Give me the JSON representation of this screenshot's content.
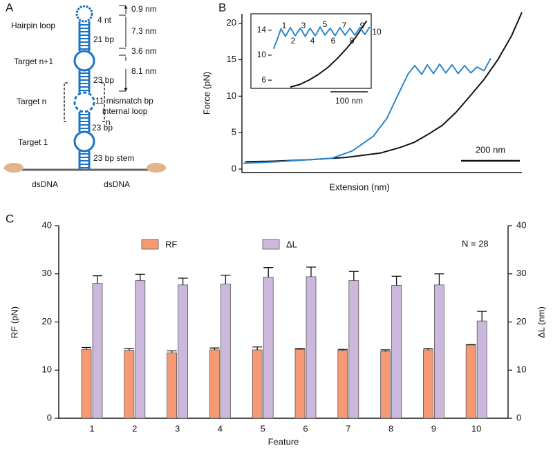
{
  "panels": {
    "a": "A",
    "b": "B",
    "c": "C"
  },
  "diagram": {
    "hairpin_loop": "Hairpin loop",
    "target_n1": "Target n+1",
    "target_n": "Target n",
    "target_1": "Target 1",
    "n": "n",
    "nt4": "4 nt",
    "bp21": "21 bp",
    "bp23_a": "23 bp",
    "mismatch": "11 mismatch bp",
    "internal_loop": "internal loop",
    "bp23_b": "23 bp",
    "stem": "23 bp stem",
    "d1": "0.9 nm",
    "d2": "7.3 nm",
    "d3": "3.6 nm",
    "d4": "8.1 nm",
    "dsdna_left": "dsDNA",
    "dsdna_right": "dsDNA"
  },
  "chart_data": [
    {
      "type": "line",
      "x_label": "Extension (nm)",
      "y_label": "Force (pN)",
      "xlim": [
        0,
        953
      ],
      "ylim": [
        0,
        21.3
      ],
      "yticks": [
        0,
        5,
        10,
        15,
        20
      ],
      "scale_bar": {
        "value": 200,
        "label": "200 nm"
      },
      "series": [
        {
          "color": "#111111",
          "x": [
            12,
            118,
            235,
            353,
            471,
            541,
            588,
            635,
            682,
            729,
            776,
            824,
            871,
            918,
            953
          ],
          "values": [
            1.0,
            1.1,
            1.3,
            1.6,
            2.2,
            3.0,
            3.7,
            4.8,
            6.0,
            7.8,
            10.0,
            12.3,
            15.0,
            18.3,
            21.5
          ]
        },
        {
          "color": "#2b86cc",
          "x": [
            5,
            118,
            306,
            376,
            447,
            494,
            529,
            565,
            588,
            612,
            631,
            652,
            673,
            694,
            715,
            736,
            758,
            779,
            800,
            824,
            847
          ],
          "values": [
            0.8,
            1.0,
            1.5,
            2.5,
            4.5,
            7.0,
            10.0,
            13.0,
            14.2,
            13.0,
            14.3,
            13.1,
            14.4,
            13.2,
            14.3,
            13.1,
            14.2,
            13.2,
            14.0,
            13.5,
            15.2
          ]
        }
      ]
    },
    {
      "type": "line",
      "xlim": [
        0,
        267
      ],
      "ylim": [
        4.8,
        16.5
      ],
      "yticks": [
        6,
        10,
        14
      ],
      "scale_bar": {
        "value": 100,
        "label": "100 nm"
      },
      "annotations": [
        "1",
        "2",
        "3",
        "4",
        "5",
        "6",
        "7",
        "8",
        "9",
        "10"
      ],
      "series": [
        {
          "color": "#111111",
          "x": [
            50,
            75,
            100,
            125,
            150,
            175,
            200,
            225,
            255
          ],
          "values": [
            4.9,
            5.3,
            6.0,
            6.9,
            8.0,
            9.4,
            11.0,
            12.8,
            15.5
          ]
        },
        {
          "color": "#2b86cc",
          "x": [
            5,
            15,
            25,
            37,
            50,
            63,
            77,
            90,
            103,
            117,
            130,
            143,
            157,
            170,
            183,
            197,
            210,
            223,
            237,
            250,
            263
          ],
          "values": [
            11,
            12.5,
            14.2,
            13,
            14.4,
            13.1,
            14.3,
            13,
            14.3,
            13.1,
            14.5,
            13.2,
            14.3,
            13.1,
            14.4,
            13.2,
            14.3,
            13.2,
            14.4,
            13.3,
            14.5
          ]
        }
      ]
    },
    {
      "type": "bar",
      "x_label": "Feature",
      "y_label": "RF (pN)",
      "y2_label": "ΔL (nm)",
      "annotation": "N = 28",
      "categories": [
        "1",
        "2",
        "3",
        "4",
        "5",
        "6",
        "7",
        "8",
        "9",
        "10"
      ],
      "ylim": [
        0,
        40
      ],
      "yticks": [
        0,
        10,
        20,
        30,
        40
      ],
      "y2lim": [
        0,
        40
      ],
      "y2ticks": [
        0,
        10,
        20,
        30,
        40
      ],
      "series": [
        {
          "name": "RF",
          "color": "#f79a74",
          "values": [
            14.3,
            14.1,
            13.6,
            14.2,
            14.2,
            14.3,
            14.1,
            13.9,
            14.2,
            15.2
          ],
          "errors": [
            0.4,
            0.4,
            0.4,
            0.4,
            0.6,
            0.2,
            0.2,
            0.3,
            0.3,
            0.1
          ]
        },
        {
          "name": "ΔL",
          "color": "#cdb8dd",
          "axis": "y2",
          "values": [
            28.0,
            28.6,
            27.7,
            27.9,
            29.3,
            29.4,
            28.6,
            27.6,
            27.7,
            20.2
          ],
          "errors": [
            1.6,
            1.3,
            1.4,
            1.8,
            2.0,
            2.0,
            1.9,
            1.9,
            2.3,
            2.0
          ]
        }
      ]
    }
  ]
}
